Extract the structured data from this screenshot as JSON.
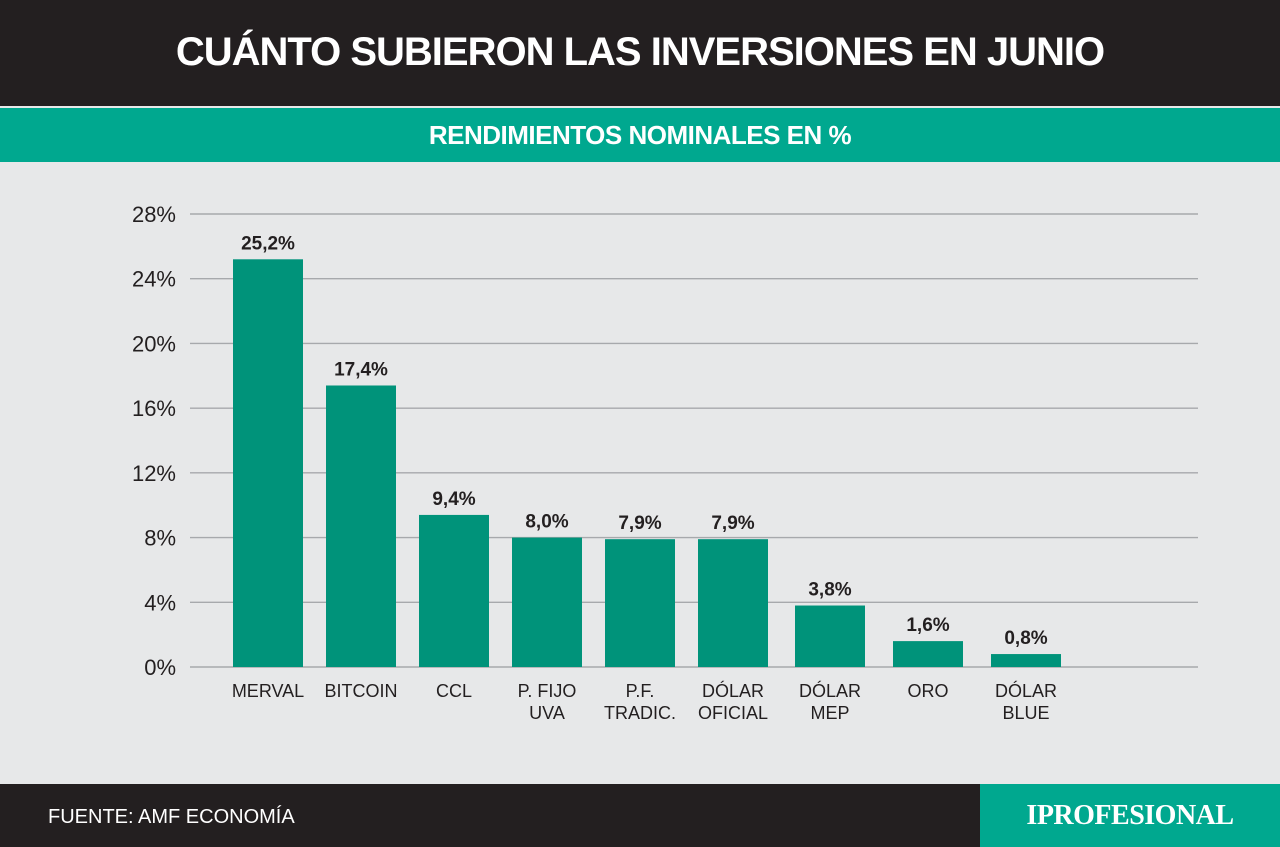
{
  "title": "CUÁNTO SUBIERON LAS INVERSIONES EN JUNIO",
  "subtitle": "RENDIMIENTOS NOMINALES EN %",
  "source": "FUENTE: AMF ECONOMÍA",
  "logo": "IPROFESIONAL",
  "colors": {
    "bar": "#00937a",
    "header": "#231f20",
    "accent": "#00a88f",
    "grid": "#a7a9ac",
    "background": "#e7e8e9"
  },
  "chart_data": {
    "type": "bar",
    "title": "RENDIMIENTOS NOMINALES EN %",
    "categories": [
      [
        "MERVAL"
      ],
      [
        "BITCOIN"
      ],
      [
        "CCL"
      ],
      [
        "P. FIJO",
        "UVA"
      ],
      [
        "P.F.",
        "TRADIC."
      ],
      [
        "DÓLAR",
        "OFICIAL"
      ],
      [
        "DÓLAR",
        "MEP"
      ],
      [
        "ORO"
      ],
      [
        "DÓLAR",
        "BLUE"
      ]
    ],
    "values": [
      25.2,
      17.4,
      9.4,
      8.0,
      7.9,
      7.9,
      3.8,
      1.6,
      0.8
    ],
    "value_labels": [
      "25,2%",
      "17,4%",
      "9,4%",
      "8,0%",
      "7,9%",
      "7,9%",
      "3,8%",
      "1,6%",
      "0,8%"
    ],
    "y_ticks": [
      0,
      4,
      8,
      12,
      16,
      20,
      24,
      28
    ],
    "y_tick_labels": [
      "0%",
      "4%",
      "8%",
      "12%",
      "16%",
      "20%",
      "24%",
      "28%"
    ],
    "ylim": [
      0,
      28
    ],
    "grid": true,
    "legend": "none"
  }
}
